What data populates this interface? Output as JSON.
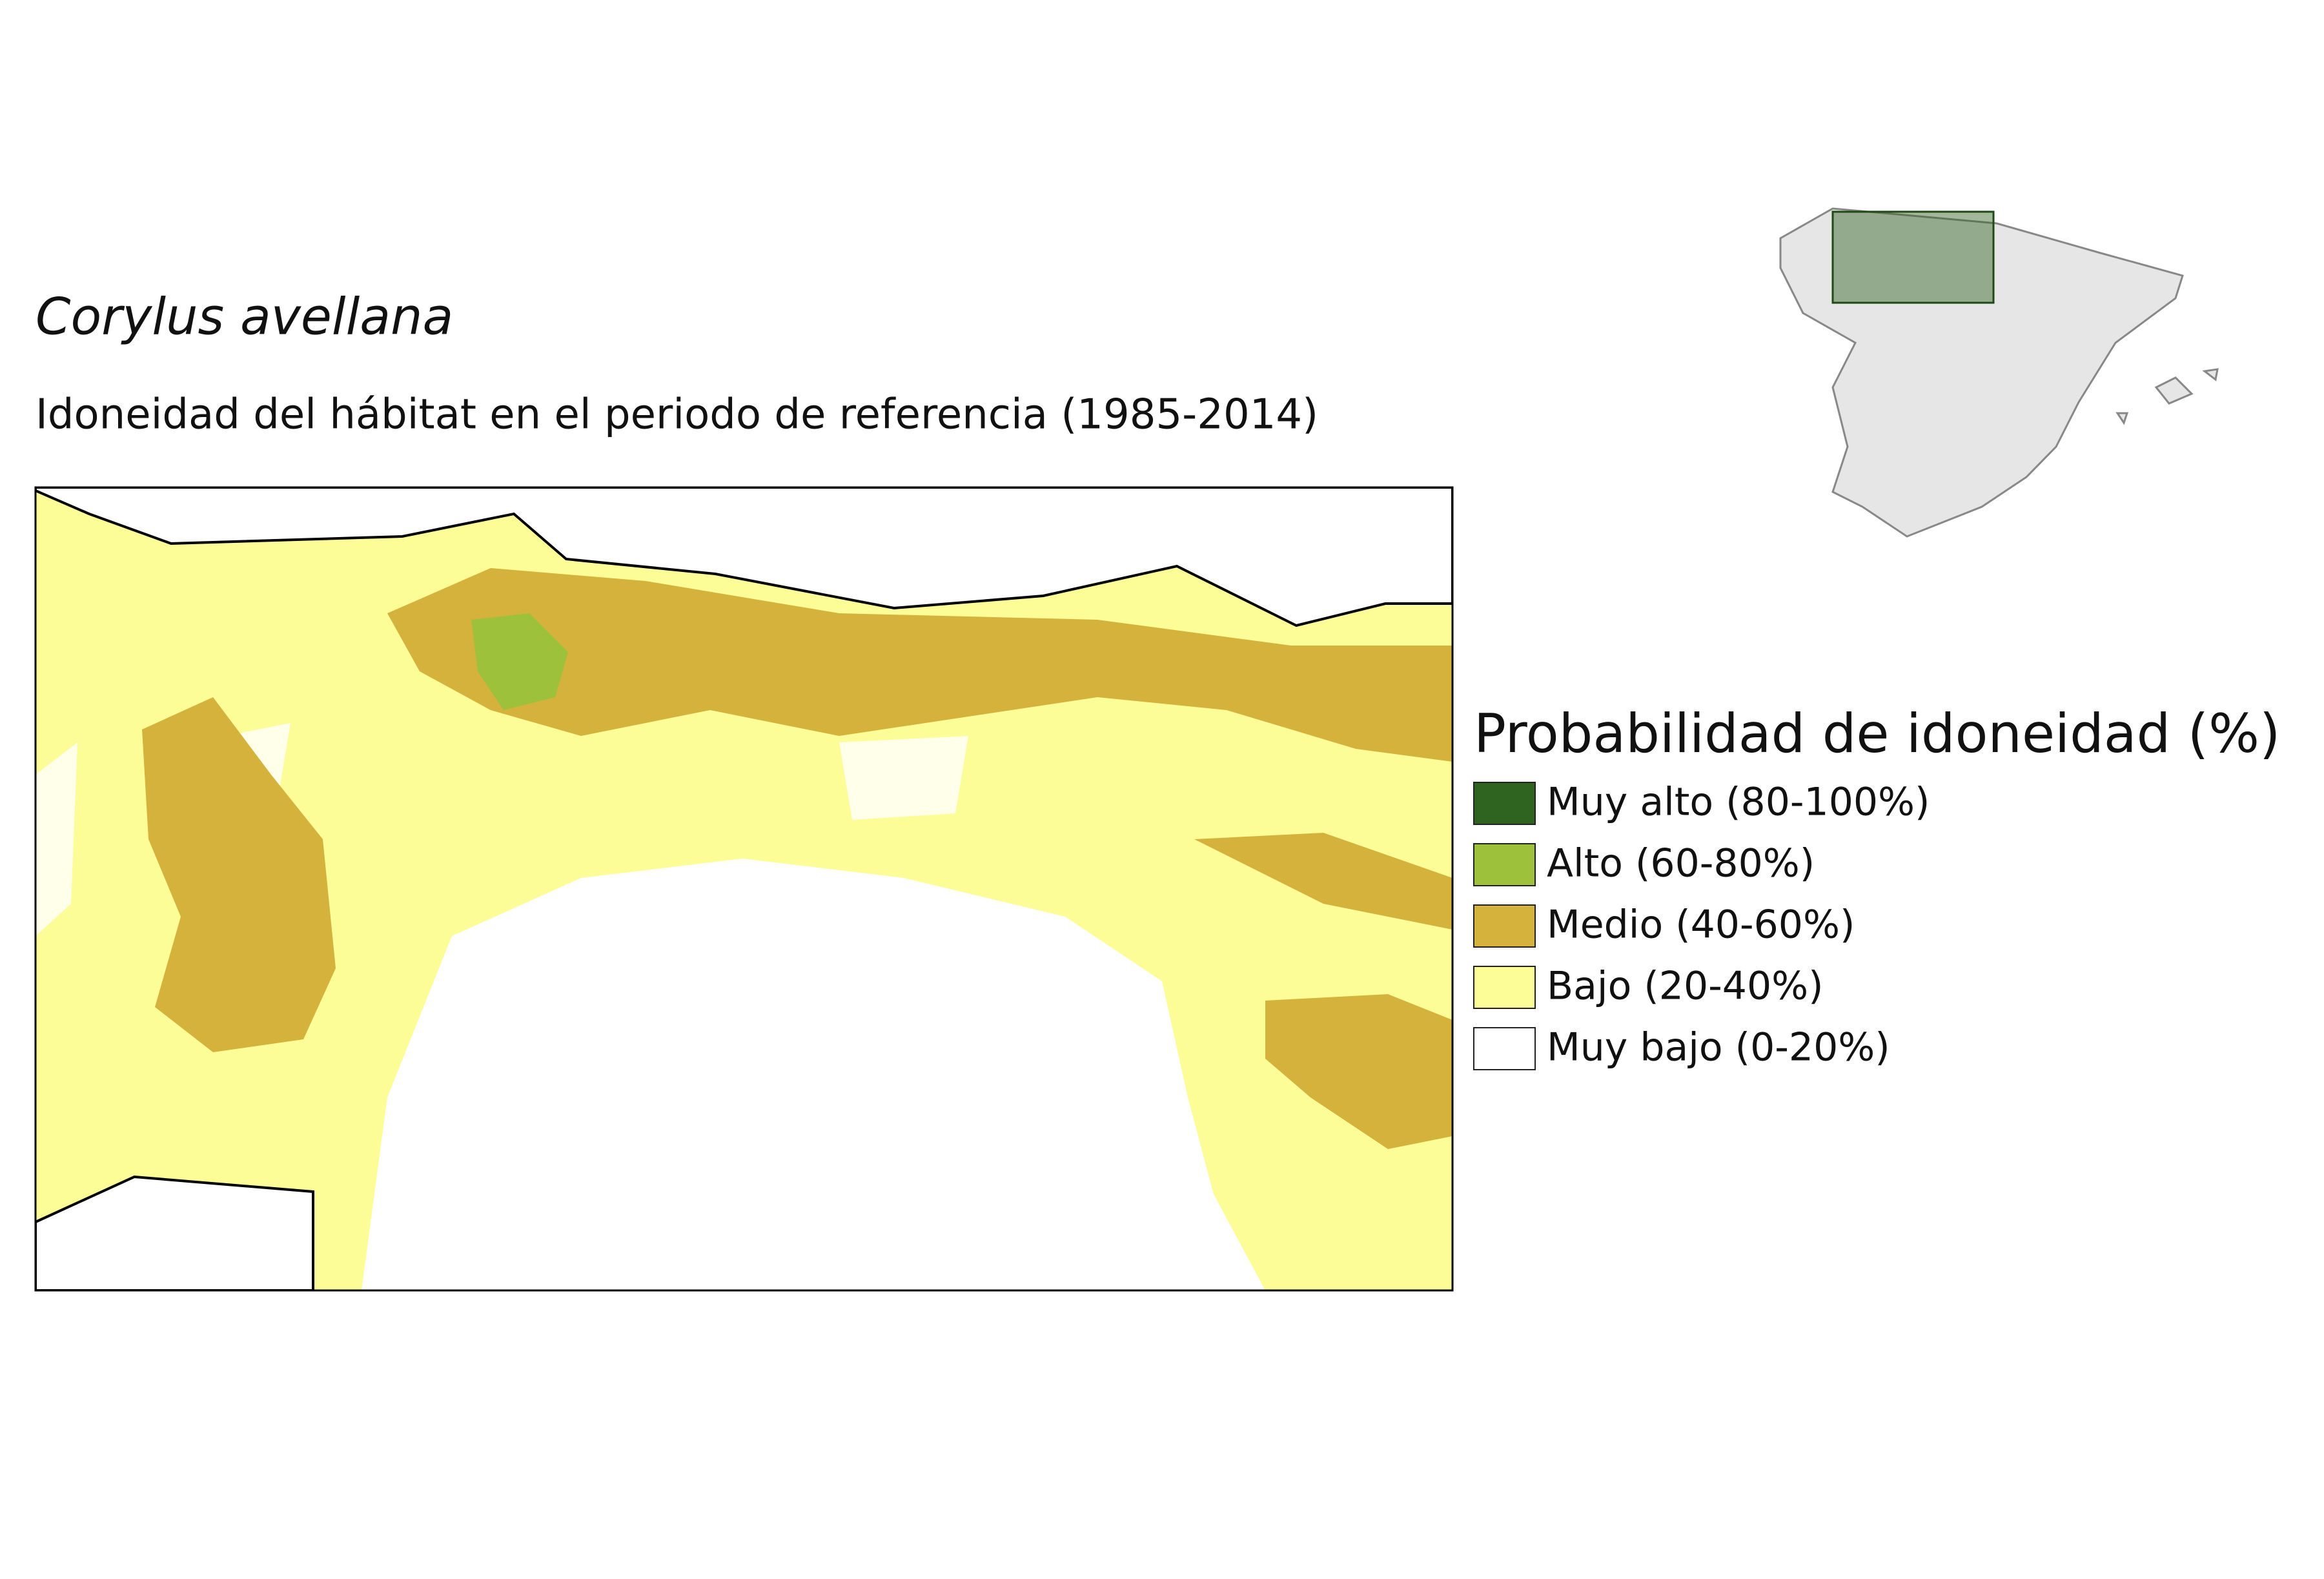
{
  "title": "Corylus avellana",
  "subtitle": "Idoneidad del hábitat en el periodo de referencia (1985-2014)",
  "legend": {
    "title": "Probabilidad de idoneidad (%)",
    "items": [
      {
        "label": "Muy alto (80-100%)",
        "color": "#2e6420"
      },
      {
        "label": "Alto (60-80%)",
        "color": "#9dc13b"
      },
      {
        "label": "Medio (40-60%)",
        "color": "#d4b23c"
      },
      {
        "label": "Bajo (20-40%)",
        "color": "#fdfd98"
      },
      {
        "label": "Muy bajo (0-20%)",
        "color": "#ffffff"
      }
    ]
  }
}
